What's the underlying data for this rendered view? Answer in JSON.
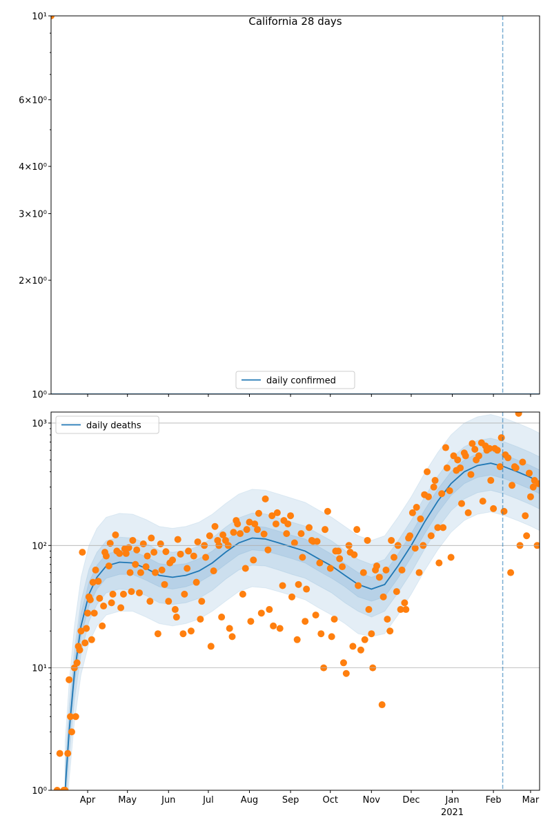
{
  "chart_data": [
    {
      "type": "line",
      "title": "California 28 days",
      "yscale": "log",
      "ylim": [
        1,
        10
      ],
      "yticks": [
        {
          "value": 1,
          "label": "10⁰"
        },
        {
          "value": 2,
          "label": "2×10⁰"
        },
        {
          "value": 3,
          "label": "3×10⁰"
        },
        {
          "value": 4,
          "label": "4×10⁰"
        },
        {
          "value": 6,
          "label": "6×10⁰"
        },
        {
          "value": 10,
          "label": "10¹"
        }
      ],
      "minor_yticks": [
        5,
        7,
        8,
        9
      ],
      "xlim": [
        3.4,
        371.8
      ],
      "grid": false,
      "legend": "lower center",
      "vline_x": 344,
      "series": [
        {
          "name": "daily confirmed",
          "color": "#1f77b4",
          "x": [
            3.4,
            371.8
          ],
          "values": [
            1,
            1
          ]
        }
      ],
      "scatter": {
        "color": "#ff7f0e",
        "x": [
          3.4
        ],
        "values": [
          10
        ]
      }
    },
    {
      "type": "line",
      "yscale": "log",
      "ylim": [
        1,
        1230
      ],
      "yticks": [
        {
          "value": 1,
          "label": "10⁰"
        },
        {
          "value": 10,
          "label": "10¹"
        },
        {
          "value": 100,
          "label": "10²"
        },
        {
          "value": 1000,
          "label": "10³"
        }
      ],
      "minor_yticks": [
        2,
        3,
        4,
        5,
        6,
        7,
        8,
        9,
        20,
        30,
        40,
        50,
        60,
        70,
        80,
        90,
        200,
        300,
        400,
        500,
        600,
        700,
        800,
        900
      ],
      "xlim": [
        3.4,
        371.8
      ],
      "xticks": [
        {
          "value": 31,
          "label": "Apr"
        },
        {
          "value": 61,
          "label": "May"
        },
        {
          "value": 92,
          "label": "Jun"
        },
        {
          "value": 122,
          "label": "Jul"
        },
        {
          "value": 153,
          "label": "Aug"
        },
        {
          "value": 184,
          "label": "Sep"
        },
        {
          "value": 214,
          "label": "Oct"
        },
        {
          "value": 245,
          "label": "Nov"
        },
        {
          "value": 275,
          "label": "Dec"
        },
        {
          "value": 306,
          "label": "Jan"
        },
        {
          "value": 337,
          "label": "Feb"
        },
        {
          "value": 365,
          "label": "Mar"
        }
      ],
      "year_marker": {
        "value": 306,
        "label": "2021"
      },
      "grid": true,
      "legend": "upper left",
      "vline_x": 344,
      "series": [
        {
          "name": "daily deaths",
          "color": "#1f77b4",
          "x": [
            14,
            17,
            21,
            26,
            32,
            38,
            45,
            55,
            65,
            75,
            85,
            95,
            105,
            115,
            125,
            135,
            145,
            155,
            165,
            175,
            185,
            195,
            205,
            215,
            225,
            235,
            245,
            255,
            265,
            275,
            285,
            295,
            305,
            315,
            325,
            335,
            345,
            355,
            365,
            372
          ],
          "values": [
            1,
            3,
            9,
            22,
            40,
            55,
            68,
            73,
            72,
            65,
            57,
            55,
            57,
            62,
            72,
            88,
            105,
            115,
            113,
            105,
            97,
            90,
            78,
            68,
            57,
            48,
            44,
            48,
            68,
            100,
            155,
            230,
            320,
            400,
            450,
            470,
            440,
            400,
            360,
            330
          ]
        }
      ],
      "bands": [
        {
          "color": "#1f77b4",
          "lower": [
            0.4,
            1.2,
            3.6,
            8.8,
            16,
            22,
            27,
            29,
            29,
            26,
            23,
            22,
            23,
            25,
            29,
            35,
            42,
            46,
            45,
            42,
            39,
            36,
            31,
            27,
            23,
            19,
            18,
            19,
            27,
            40,
            62,
            92,
            128,
            160,
            180,
            188,
            176,
            160,
            144,
            132
          ],
          "upper": [
            2.5,
            7.5,
            22,
            55,
            100,
            138,
            170,
            183,
            180,
            163,
            143,
            138,
            143,
            155,
            180,
            220,
            263,
            288,
            283,
            263,
            243,
            225,
            195,
            170,
            143,
            120,
            110,
            120,
            170,
            250,
            388,
            575,
            800,
            1000,
            1125,
            1175,
            1100,
            1000,
            900,
            825
          ]
        },
        {
          "color": "#1f77b4",
          "lower": [
            0.6,
            1.8,
            5.4,
            13,
            24,
            33,
            41,
            44,
            43,
            39,
            34,
            33,
            34,
            37,
            43,
            53,
            63,
            69,
            68,
            63,
            58,
            54,
            47,
            41,
            34,
            29,
            26,
            29,
            41,
            60,
            93,
            138,
            192,
            240,
            270,
            282,
            264,
            240,
            216,
            198
          ],
          "upper": [
            1.6,
            4.8,
            14,
            35,
            64,
            88,
            109,
            117,
            115,
            104,
            91,
            88,
            91,
            99,
            115,
            141,
            168,
            184,
            181,
            168,
            155,
            144,
            125,
            109,
            91,
            77,
            70,
            77,
            109,
            160,
            248,
            368,
            512,
            640,
            720,
            752,
            704,
            640,
            576,
            528
          ]
        },
        {
          "color": "#1f77b4",
          "lower": [
            0.8,
            2.4,
            7.2,
            18,
            32,
            44,
            54,
            58,
            58,
            52,
            46,
            44,
            46,
            50,
            58,
            70,
            84,
            92,
            90,
            84,
            78,
            72,
            62,
            54,
            46,
            38,
            35,
            38,
            54,
            80,
            124,
            184,
            256,
            320,
            360,
            376,
            352,
            320,
            288,
            264
          ],
          "upper": [
            1.25,
            3.75,
            11,
            28,
            50,
            69,
            85,
            91,
            90,
            81,
            71,
            69,
            71,
            78,
            90,
            110,
            131,
            144,
            141,
            131,
            121,
            113,
            98,
            85,
            71,
            60,
            55,
            60,
            85,
            125,
            194,
            288,
            400,
            500,
            563,
            588,
            550,
            500,
            450,
            413
          ]
        }
      ],
      "scatter": {
        "color": "#ff7f0e",
        "x": [
          8,
          10,
          13,
          14,
          16,
          17,
          18,
          19,
          21,
          22,
          23,
          24,
          25,
          26,
          27,
          29,
          30,
          31,
          32,
          33,
          34,
          35,
          36,
          37,
          39,
          40,
          42,
          43,
          44,
          45,
          47,
          48,
          49,
          50,
          52,
          53,
          55,
          56,
          58,
          59,
          60,
          62,
          63,
          64,
          65,
          67,
          68,
          70,
          71,
          73,
          75,
          76,
          78,
          79,
          81,
          82,
          84,
          86,
          87,
          89,
          90,
          92,
          93,
          95,
          97,
          98,
          99,
          101,
          103,
          104,
          106,
          107,
          109,
          111,
          113,
          114,
          116,
          117,
          119,
          120,
          123,
          124,
          126,
          127,
          129,
          130,
          132,
          133,
          135,
          137,
          138,
          140,
          141,
          143,
          144,
          146,
          148,
          150,
          151,
          153,
          154,
          156,
          157,
          159,
          160,
          162,
          164,
          165,
          167,
          168,
          170,
          171,
          173,
          174,
          176,
          178,
          179,
          181,
          182,
          184,
          185,
          187,
          189,
          190,
          192,
          193,
          195,
          196,
          198,
          200,
          201,
          203,
          204,
          206,
          207,
          209,
          210,
          212,
          214,
          215,
          217,
          218,
          220,
          221,
          223,
          224,
          226,
          228,
          229,
          231,
          232,
          234,
          235,
          237,
          239,
          240,
          242,
          243,
          245,
          246,
          248,
          249,
          251,
          253,
          254,
          256,
          257,
          259,
          260,
          262,
          264,
          265,
          267,
          268,
          270,
          271,
          273,
          274,
          276,
          278,
          279,
          281,
          282,
          284,
          285,
          287,
          288,
          290,
          292,
          293,
          295,
          296,
          298,
          299,
          301,
          302,
          304,
          305,
          307,
          309,
          310,
          312,
          313,
          315,
          316,
          318,
          320,
          321,
          323,
          324,
          326,
          328,
          329,
          331,
          332,
          334,
          335,
          337,
          338,
          340,
          342,
          343,
          345,
          346,
          348,
          350,
          351,
          353,
          354,
          356,
          357,
          359,
          361,
          362,
          364,
          365,
          367,
          368,
          370,
          371
        ],
        "values": [
          1,
          2,
          1,
          1,
          2,
          8,
          4,
          3,
          10,
          4,
          11,
          15,
          14,
          20,
          88,
          16,
          21,
          28,
          38,
          36,
          17,
          50,
          28,
          63,
          51,
          37,
          22,
          32,
          88,
          82,
          68,
          104,
          34,
          40,
          122,
          90,
          86,
          31,
          40,
          94,
          86,
          96,
          60,
          42,
          110,
          70,
          92,
          41,
          60,
          103,
          67,
          82,
          35,
          115,
          88,
          60,
          19,
          103,
          63,
          48,
          89,
          35,
          72,
          76,
          30,
          26,
          112,
          85,
          19,
          40,
          65,
          90,
          20,
          82,
          50,
          107,
          25,
          35,
          100,
          80,
          120,
          15,
          62,
          143,
          110,
          100,
          26,
          122,
          110,
          100,
          21,
          18,
          128,
          160,
          150,
          125,
          40,
          65,
          135,
          155,
          24,
          76,
          150,
          135,
          183,
          28,
          124,
          240,
          92,
          30,
          175,
          22,
          150,
          185,
          21,
          47,
          160,
          125,
          150,
          175,
          38,
          105,
          17,
          48,
          125,
          80,
          24,
          44,
          140,
          110,
          108,
          27,
          108,
          72,
          19,
          10,
          135,
          190,
          65,
          18,
          25,
          90,
          90,
          78,
          67,
          11,
          9,
          100,
          88,
          15,
          84,
          135,
          47,
          14,
          60,
          17,
          110,
          30,
          19,
          10,
          63,
          68,
          55,
          5,
          38,
          63,
          25,
          20,
          110,
          80,
          42,
          100,
          30,
          63,
          34,
          30,
          115,
          120,
          185,
          95,
          205,
          60,
          165,
          100,
          260,
          400,
          250,
          120,
          300,
          340,
          140,
          72,
          265,
          140,
          630,
          430,
          280,
          80,
          540,
          410,
          500,
          430,
          220,
          570,
          540,
          185,
          380,
          680,
          610,
          500,
          540,
          690,
          230,
          650,
          600,
          620,
          340,
          200,
          620,
          600,
          440,
          760,
          190,
          550,
          520,
          60,
          310,
          440,
          430,
          1200,
          100,
          480,
          175,
          120,
          390,
          250,
          300,
          340,
          100,
          320
        ]
      }
    }
  ]
}
